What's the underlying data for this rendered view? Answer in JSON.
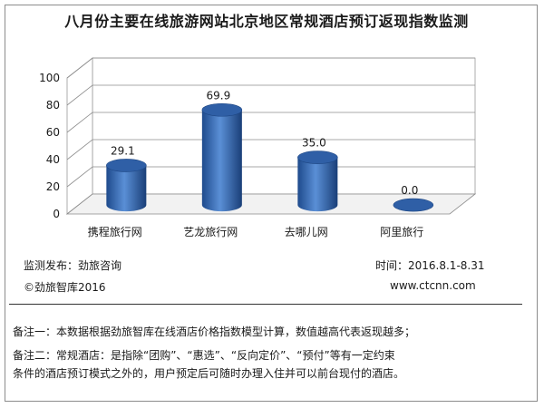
{
  "title": "八月份主要在线旅游网站北京地区常规酒店预订返现指数监测",
  "chart_data": {
    "type": "bar",
    "categories": [
      "携程旅行网",
      "艺龙旅行网",
      "去哪儿网",
      "阿里旅行"
    ],
    "values": [
      29.1,
      69.9,
      35.0,
      0.0
    ],
    "value_labels": [
      "29.1",
      "69.9",
      "35.0",
      "0.0"
    ],
    "y_ticks": [
      "0",
      "20",
      "40",
      "60",
      "80",
      "100"
    ],
    "ylim": [
      0,
      100
    ],
    "grid": true,
    "style": "3d-cylinder",
    "bar_color": "#3f6fb5"
  },
  "source": "监测发布：劲旅咨询",
  "period": "时间：2016.8.1-8.31",
  "copyright": "©劲旅智库2016",
  "website": "www.ctcnn.com",
  "notes": [
    "备注一：本数据根据劲旅智库在线酒店价格指数模型计算，数值越高代表返现越多；",
    "备注二：常规酒店：是指除“团购”、“惠选”、“反向定价”、“预付”等有一定约束",
    "条件的酒店预订模式之外的，用户预定后可随时办理入住并可以前台现付的酒店。"
  ]
}
